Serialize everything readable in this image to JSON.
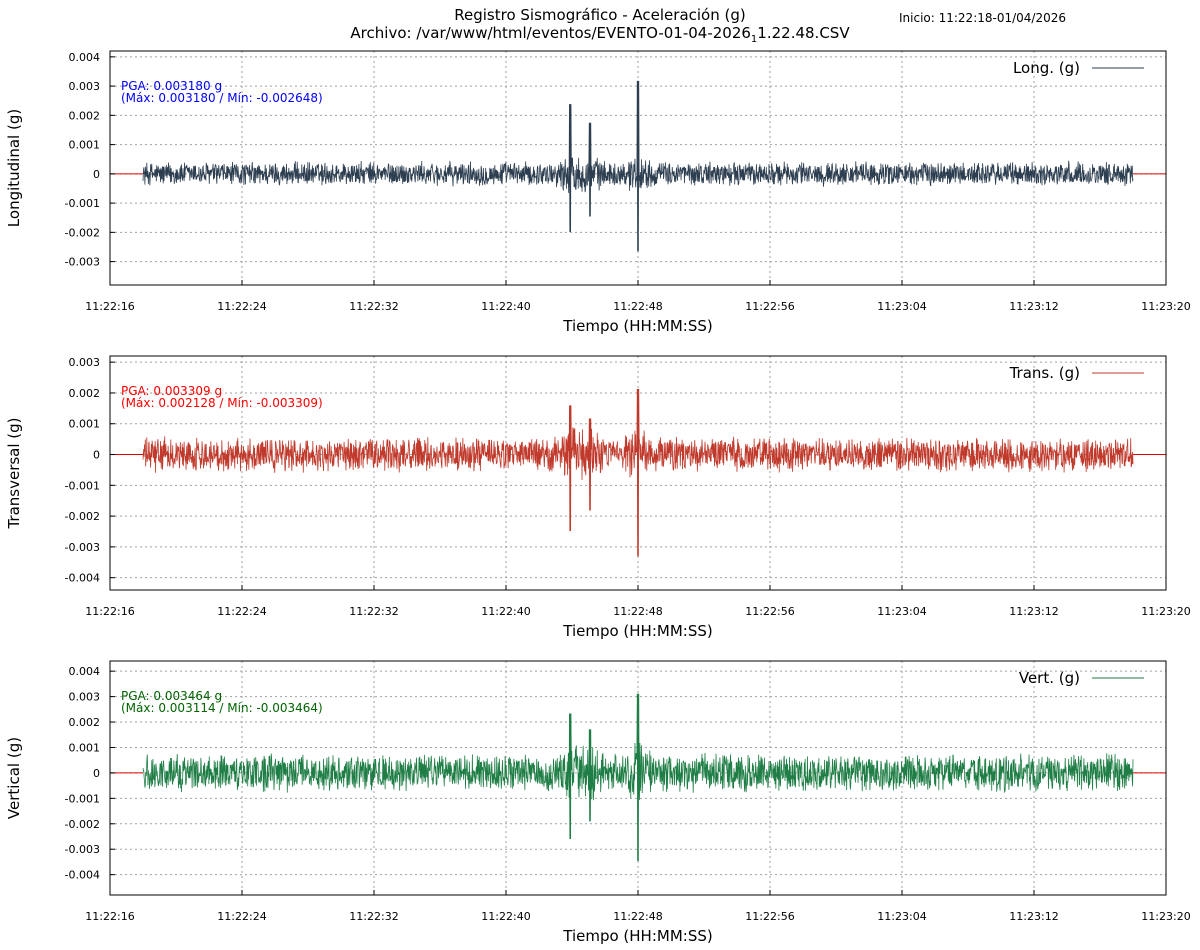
{
  "header": {
    "title": "Registro Sismográfico - Aceleración (g)",
    "file_prefix": "Archivo: /var/www/html/eventos/EVENTO-01-04-2026",
    "file_subscript": "1",
    "file_suffix": "1.22.48.CSV",
    "start": "Inicio: 11:22:18-01/04/2026"
  },
  "chart_data": [
    {
      "type": "line",
      "ylabel": "Longitudinal (g)",
      "xlabel": "Tiempo (HH:MM:SS)",
      "legend": "Long. (g)",
      "legend_position": "top-right",
      "grid": true,
      "color": "#2c3e50",
      "annotation_color": "#0000ff",
      "pga": "PGA: 0.003180 g",
      "maxmin": "(Máx: 0.003180 / Mín: -0.002648)",
      "max": 0.00318,
      "min": -0.002648,
      "noise_amplitude": 0.00045,
      "ylim": [
        -0.0038,
        0.0042
      ],
      "yticks": [
        0.004,
        0.003,
        0.002,
        0.001,
        0,
        -0.001,
        -0.002,
        -0.003
      ],
      "yticklabels": [
        "0.004",
        "0.003",
        "0.002",
        "0.001",
        "0",
        "-0.001",
        "-0.002",
        "-0.003"
      ],
      "xlim": [
        "11:22:16",
        "11:23:20"
      ],
      "xticks": [
        "11:22:16",
        "11:22:24",
        "11:22:32",
        "11:22:40",
        "11:22:48",
        "11:22:56",
        "11:23:04",
        "11:23:12",
        "11:23:20"
      ],
      "data_range": [
        "11:22:18",
        "11:23:18"
      ]
    },
    {
      "type": "line",
      "ylabel": "Transversal (g)",
      "xlabel": "Tiempo (HH:MM:SS)",
      "legend": "Trans. (g)",
      "legend_position": "top-right",
      "grid": true,
      "color": "#c0392b",
      "annotation_color": "#ff0000",
      "pga": "PGA: 0.003309 g",
      "maxmin": "(Máx: 0.002128 / Mín: -0.003309)",
      "max": 0.002128,
      "min": -0.003309,
      "noise_amplitude": 0.0006,
      "ylim": [
        -0.0044,
        0.0032
      ],
      "yticks": [
        0.003,
        0.002,
        0.001,
        0,
        -0.001,
        -0.002,
        -0.003,
        -0.004
      ],
      "yticklabels": [
        "0.003",
        "0.002",
        "0.001",
        "0",
        "-0.001",
        "-0.002",
        "-0.003",
        "-0.004"
      ],
      "xlim": [
        "11:22:16",
        "11:23:20"
      ],
      "xticks": [
        "11:22:16",
        "11:22:24",
        "11:22:32",
        "11:22:40",
        "11:22:48",
        "11:22:56",
        "11:23:04",
        "11:23:12",
        "11:23:20"
      ],
      "data_range": [
        "11:22:18",
        "11:23:18"
      ]
    },
    {
      "type": "line",
      "ylabel": "Vertical (g)",
      "xlabel": "Tiempo (HH:MM:SS)",
      "legend": "Vert. (g)",
      "legend_position": "top-right",
      "grid": true,
      "color": "#1e7e45",
      "annotation_color": "#006400",
      "pga": "PGA: 0.003464 g",
      "maxmin": "(Máx: 0.003114 / Mín: -0.003464)",
      "max": 0.003114,
      "min": -0.003464,
      "noise_amplitude": 0.0008,
      "ylim": [
        -0.0048,
        0.0044
      ],
      "yticks": [
        0.004,
        0.003,
        0.002,
        0.001,
        0,
        -0.001,
        -0.002,
        -0.003,
        -0.004
      ],
      "yticklabels": [
        "0.004",
        "0.003",
        "0.002",
        "0.001",
        "0",
        "-0.001",
        "-0.002",
        "-0.003",
        "-0.004"
      ],
      "xlim": [
        "11:22:16",
        "11:23:20"
      ],
      "xticks": [
        "11:22:16",
        "11:22:24",
        "11:22:32",
        "11:22:40",
        "11:22:48",
        "11:22:56",
        "11:23:04",
        "11:23:12",
        "11:23:20"
      ],
      "data_range": [
        "11:22:18",
        "11:23:18"
      ]
    }
  ]
}
